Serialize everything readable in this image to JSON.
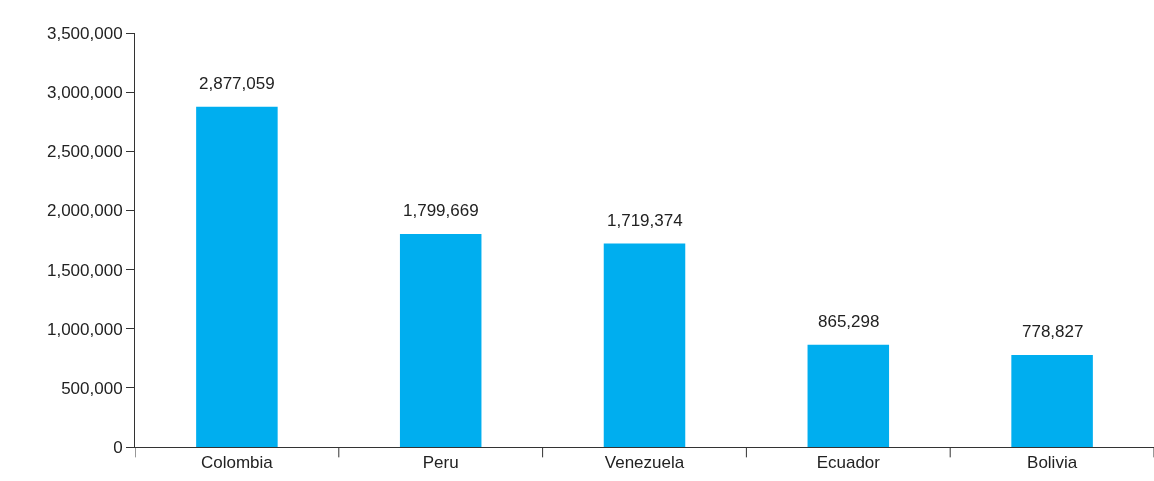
{
  "chart_data": {
    "type": "bar",
    "categories": [
      "Colombia",
      "Peru",
      "Venezuela",
      "Ecuador",
      "Bolivia"
    ],
    "values": [
      2877059,
      1799669,
      1719374,
      865298,
      778827
    ],
    "color": "#00aeef",
    "ylim": [
      0,
      3500000
    ],
    "yticks": [
      {
        "value": 0,
        "label": "0"
      },
      {
        "value": 500000,
        "label": "500,000"
      },
      {
        "value": 1000000,
        "label": "1,000,000"
      },
      {
        "value": 1500000,
        "label": "1,500,000"
      },
      {
        "value": 2000000,
        "label": "2,000,000"
      },
      {
        "value": 2500000,
        "label": "2,500,000"
      },
      {
        "value": 3000000,
        "label": "3,000,000"
      },
      {
        "value": 3500000,
        "label": "3,500,000"
      }
    ],
    "value_labels": [
      "2,877,059",
      "1,799,669",
      "1,719,374",
      "865,298",
      "778,827"
    ]
  }
}
